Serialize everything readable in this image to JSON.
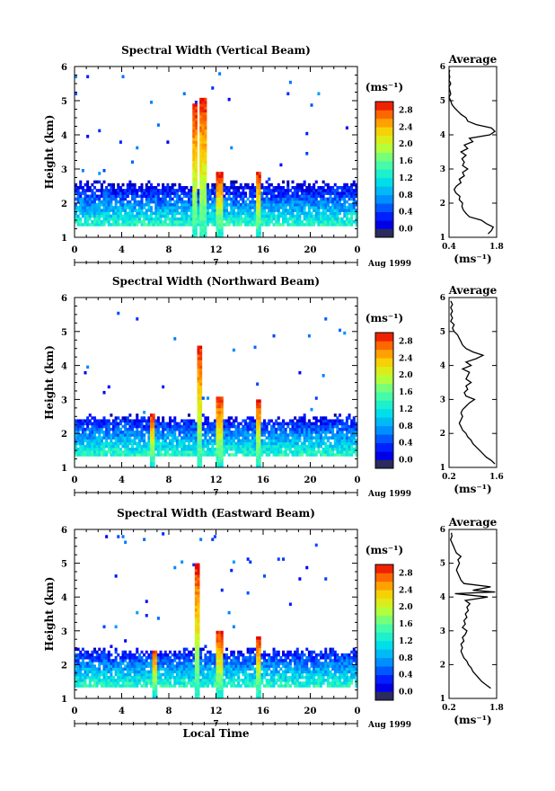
{
  "chart_data": [
    {
      "type": "heatmap",
      "title": "Spectral Width (Vertical Beam)",
      "ylabel": "Height (km)",
      "xlabel": "",
      "x_ticks": [
        "0",
        "4",
        "8",
        "12",
        "16",
        "20",
        "0"
      ],
      "y_ticks": [
        "1",
        "2",
        "3",
        "4",
        "5",
        "6"
      ],
      "xlim": [
        0,
        24
      ],
      "ylim": [
        1,
        6
      ],
      "date_label": "7",
      "month_label": "Aug 1999",
      "colorbar": {
        "unit": "(ms⁻¹)",
        "ticks": [
          "0.0",
          "0.4",
          "0.8",
          "1.2",
          "1.6",
          "2.0",
          "2.4",
          "2.8"
        ],
        "range": [
          0.0,
          3.0
        ]
      },
      "profile": {
        "title": "Average",
        "xlabel": "(ms⁻¹)",
        "x_ticks": [
          "0.4",
          "1.8"
        ],
        "xlim": [
          0.4,
          1.8
        ],
        "y_ticks": [
          "1",
          "2",
          "3",
          "4",
          "5",
          "6"
        ],
        "ylim": [
          1,
          6
        ],
        "points": [
          [
            1.55,
            1.1
          ],
          [
            1.65,
            1.2
          ],
          [
            1.7,
            1.3
          ],
          [
            1.5,
            1.4
          ],
          [
            1.35,
            1.5
          ],
          [
            1.0,
            1.6
          ],
          [
            0.9,
            1.7
          ],
          [
            0.82,
            1.8
          ],
          [
            0.78,
            1.9
          ],
          [
            0.8,
            2.0
          ],
          [
            0.7,
            2.1
          ],
          [
            0.72,
            2.2
          ],
          [
            0.6,
            2.3
          ],
          [
            0.55,
            2.4
          ],
          [
            0.62,
            2.5
          ],
          [
            0.75,
            2.6
          ],
          [
            0.7,
            2.7
          ],
          [
            0.85,
            2.8
          ],
          [
            0.8,
            2.9
          ],
          [
            0.95,
            3.0
          ],
          [
            0.8,
            3.1
          ],
          [
            0.85,
            3.2
          ],
          [
            0.78,
            3.3
          ],
          [
            0.9,
            3.4
          ],
          [
            0.75,
            3.5
          ],
          [
            0.95,
            3.6
          ],
          [
            0.85,
            3.7
          ],
          [
            1.1,
            3.8
          ],
          [
            1.0,
            3.9
          ],
          [
            1.6,
            4.0
          ],
          [
            1.75,
            4.1
          ],
          [
            1.65,
            4.2
          ],
          [
            1.2,
            4.3
          ],
          [
            0.95,
            4.4
          ],
          [
            0.9,
            4.5
          ],
          [
            0.75,
            4.6
          ],
          [
            0.65,
            4.7
          ],
          [
            0.55,
            4.8
          ],
          [
            0.48,
            4.9
          ],
          [
            0.45,
            5.0
          ],
          [
            0.4,
            5.1
          ],
          [
            0.45,
            5.2
          ],
          [
            0.42,
            5.3
          ],
          [
            0.4,
            5.4
          ],
          [
            0.45,
            5.5
          ],
          [
            0.4,
            5.6
          ],
          [
            0.42,
            5.7
          ],
          [
            0.4,
            5.8
          ],
          [
            0.42,
            5.9
          ]
        ]
      }
    },
    {
      "type": "heatmap",
      "title": "Spectral Width (Northward Beam)",
      "ylabel": "Height (km)",
      "xlabel": "",
      "x_ticks": [
        "0",
        "4",
        "8",
        "12",
        "16",
        "20",
        "0"
      ],
      "y_ticks": [
        "1",
        "2",
        "3",
        "4",
        "5",
        "6"
      ],
      "xlim": [
        0,
        24
      ],
      "ylim": [
        1,
        6
      ],
      "date_label": "7",
      "month_label": "Aug 1999",
      "colorbar": {
        "unit": "(ms⁻¹)",
        "ticks": [
          "0.0",
          "0.4",
          "0.8",
          "1.2",
          "1.6",
          "2.0",
          "2.4",
          "2.8"
        ],
        "range": [
          0.0,
          3.0
        ]
      },
      "profile": {
        "title": "Average",
        "xlabel": "(ms⁻¹)",
        "x_ticks": [
          "0.2",
          "1.6"
        ],
        "xlim": [
          0.2,
          1.6
        ],
        "y_ticks": [
          "1",
          "2",
          "3",
          "4",
          "5",
          "6"
        ],
        "ylim": [
          1,
          6
        ],
        "points": [
          [
            1.55,
            1.1
          ],
          [
            1.45,
            1.2
          ],
          [
            1.3,
            1.3
          ],
          [
            1.2,
            1.4
          ],
          [
            1.1,
            1.5
          ],
          [
            1.0,
            1.6
          ],
          [
            0.9,
            1.7
          ],
          [
            0.85,
            1.8
          ],
          [
            0.75,
            1.9
          ],
          [
            0.7,
            2.0
          ],
          [
            0.6,
            2.1
          ],
          [
            0.55,
            2.2
          ],
          [
            0.5,
            2.3
          ],
          [
            0.55,
            2.4
          ],
          [
            0.6,
            2.5
          ],
          [
            0.55,
            2.6
          ],
          [
            0.6,
            2.7
          ],
          [
            0.7,
            2.8
          ],
          [
            0.8,
            2.9
          ],
          [
            0.95,
            3.0
          ],
          [
            0.7,
            3.1
          ],
          [
            0.65,
            3.2
          ],
          [
            0.75,
            3.3
          ],
          [
            0.7,
            3.4
          ],
          [
            0.85,
            3.5
          ],
          [
            0.7,
            3.6
          ],
          [
            0.75,
            3.7
          ],
          [
            0.8,
            3.8
          ],
          [
            0.6,
            3.9
          ],
          [
            0.85,
            4.0
          ],
          [
            0.7,
            4.1
          ],
          [
            1.0,
            4.2
          ],
          [
            1.2,
            4.3
          ],
          [
            0.9,
            4.4
          ],
          [
            0.7,
            4.5
          ],
          [
            0.6,
            4.6
          ],
          [
            0.55,
            4.7
          ],
          [
            0.5,
            4.8
          ],
          [
            0.45,
            4.9
          ],
          [
            0.35,
            5.0
          ],
          [
            0.3,
            5.1
          ],
          [
            0.35,
            5.2
          ],
          [
            0.25,
            5.3
          ],
          [
            0.3,
            5.4
          ],
          [
            0.25,
            5.5
          ],
          [
            0.3,
            5.6
          ],
          [
            0.25,
            5.7
          ],
          [
            0.3,
            5.8
          ],
          [
            0.25,
            5.9
          ]
        ]
      }
    },
    {
      "type": "heatmap",
      "title": "Spectral Width (Eastward Beam)",
      "ylabel": "Height (km)",
      "xlabel": "Local Time",
      "x_ticks": [
        "0",
        "4",
        "8",
        "12",
        "16",
        "20",
        "0"
      ],
      "y_ticks": [
        "1",
        "2",
        "3",
        "4",
        "5",
        "6"
      ],
      "xlim": [
        0,
        24
      ],
      "ylim": [
        1,
        6
      ],
      "date_label": "7",
      "month_label": "Aug 1999",
      "colorbar": {
        "unit": "(ms⁻¹)",
        "ticks": [
          "0.0",
          "0.4",
          "0.8",
          "1.2",
          "1.6",
          "2.0",
          "2.4",
          "2.8"
        ],
        "range": [
          0.0,
          3.0
        ]
      },
      "profile": {
        "title": "Average",
        "xlabel": "(ms⁻¹)",
        "x_ticks": [
          "0.2",
          "1.8"
        ],
        "xlim": [
          0.2,
          1.8
        ],
        "y_ticks": [
          "1",
          "2",
          "3",
          "4",
          "5",
          "6"
        ],
        "ylim": [
          1,
          6
        ],
        "points": [
          [
            1.6,
            1.3
          ],
          [
            1.45,
            1.4
          ],
          [
            1.3,
            1.5
          ],
          [
            1.2,
            1.6
          ],
          [
            1.1,
            1.7
          ],
          [
            1.0,
            1.8
          ],
          [
            0.95,
            1.9
          ],
          [
            0.85,
            2.0
          ],
          [
            0.8,
            2.1
          ],
          [
            0.7,
            2.2
          ],
          [
            0.65,
            2.3
          ],
          [
            0.6,
            2.4
          ],
          [
            0.65,
            2.5
          ],
          [
            0.6,
            2.6
          ],
          [
            0.7,
            2.7
          ],
          [
            0.65,
            2.8
          ],
          [
            0.75,
            2.9
          ],
          [
            0.8,
            3.0
          ],
          [
            0.65,
            3.1
          ],
          [
            0.75,
            3.2
          ],
          [
            0.7,
            3.3
          ],
          [
            0.8,
            3.4
          ],
          [
            0.75,
            3.5
          ],
          [
            0.85,
            3.6
          ],
          [
            0.8,
            3.7
          ],
          [
            0.9,
            3.8
          ],
          [
            0.75,
            3.9
          ],
          [
            1.5,
            4.0
          ],
          [
            0.4,
            4.1
          ],
          [
            1.75,
            4.15
          ],
          [
            1.0,
            4.2
          ],
          [
            1.6,
            4.3
          ],
          [
            0.7,
            4.4
          ],
          [
            0.6,
            4.5
          ],
          [
            0.55,
            4.6
          ],
          [
            0.5,
            4.7
          ],
          [
            0.45,
            4.8
          ],
          [
            0.5,
            4.9
          ],
          [
            0.55,
            5.0
          ],
          [
            0.5,
            5.1
          ],
          [
            0.6,
            5.2
          ],
          [
            0.45,
            5.3
          ],
          [
            0.4,
            5.4
          ],
          [
            0.35,
            5.5
          ],
          [
            0.3,
            5.6
          ],
          [
            0.25,
            5.7
          ],
          [
            0.3,
            5.8
          ],
          [
            0.28,
            5.9
          ]
        ]
      }
    }
  ]
}
